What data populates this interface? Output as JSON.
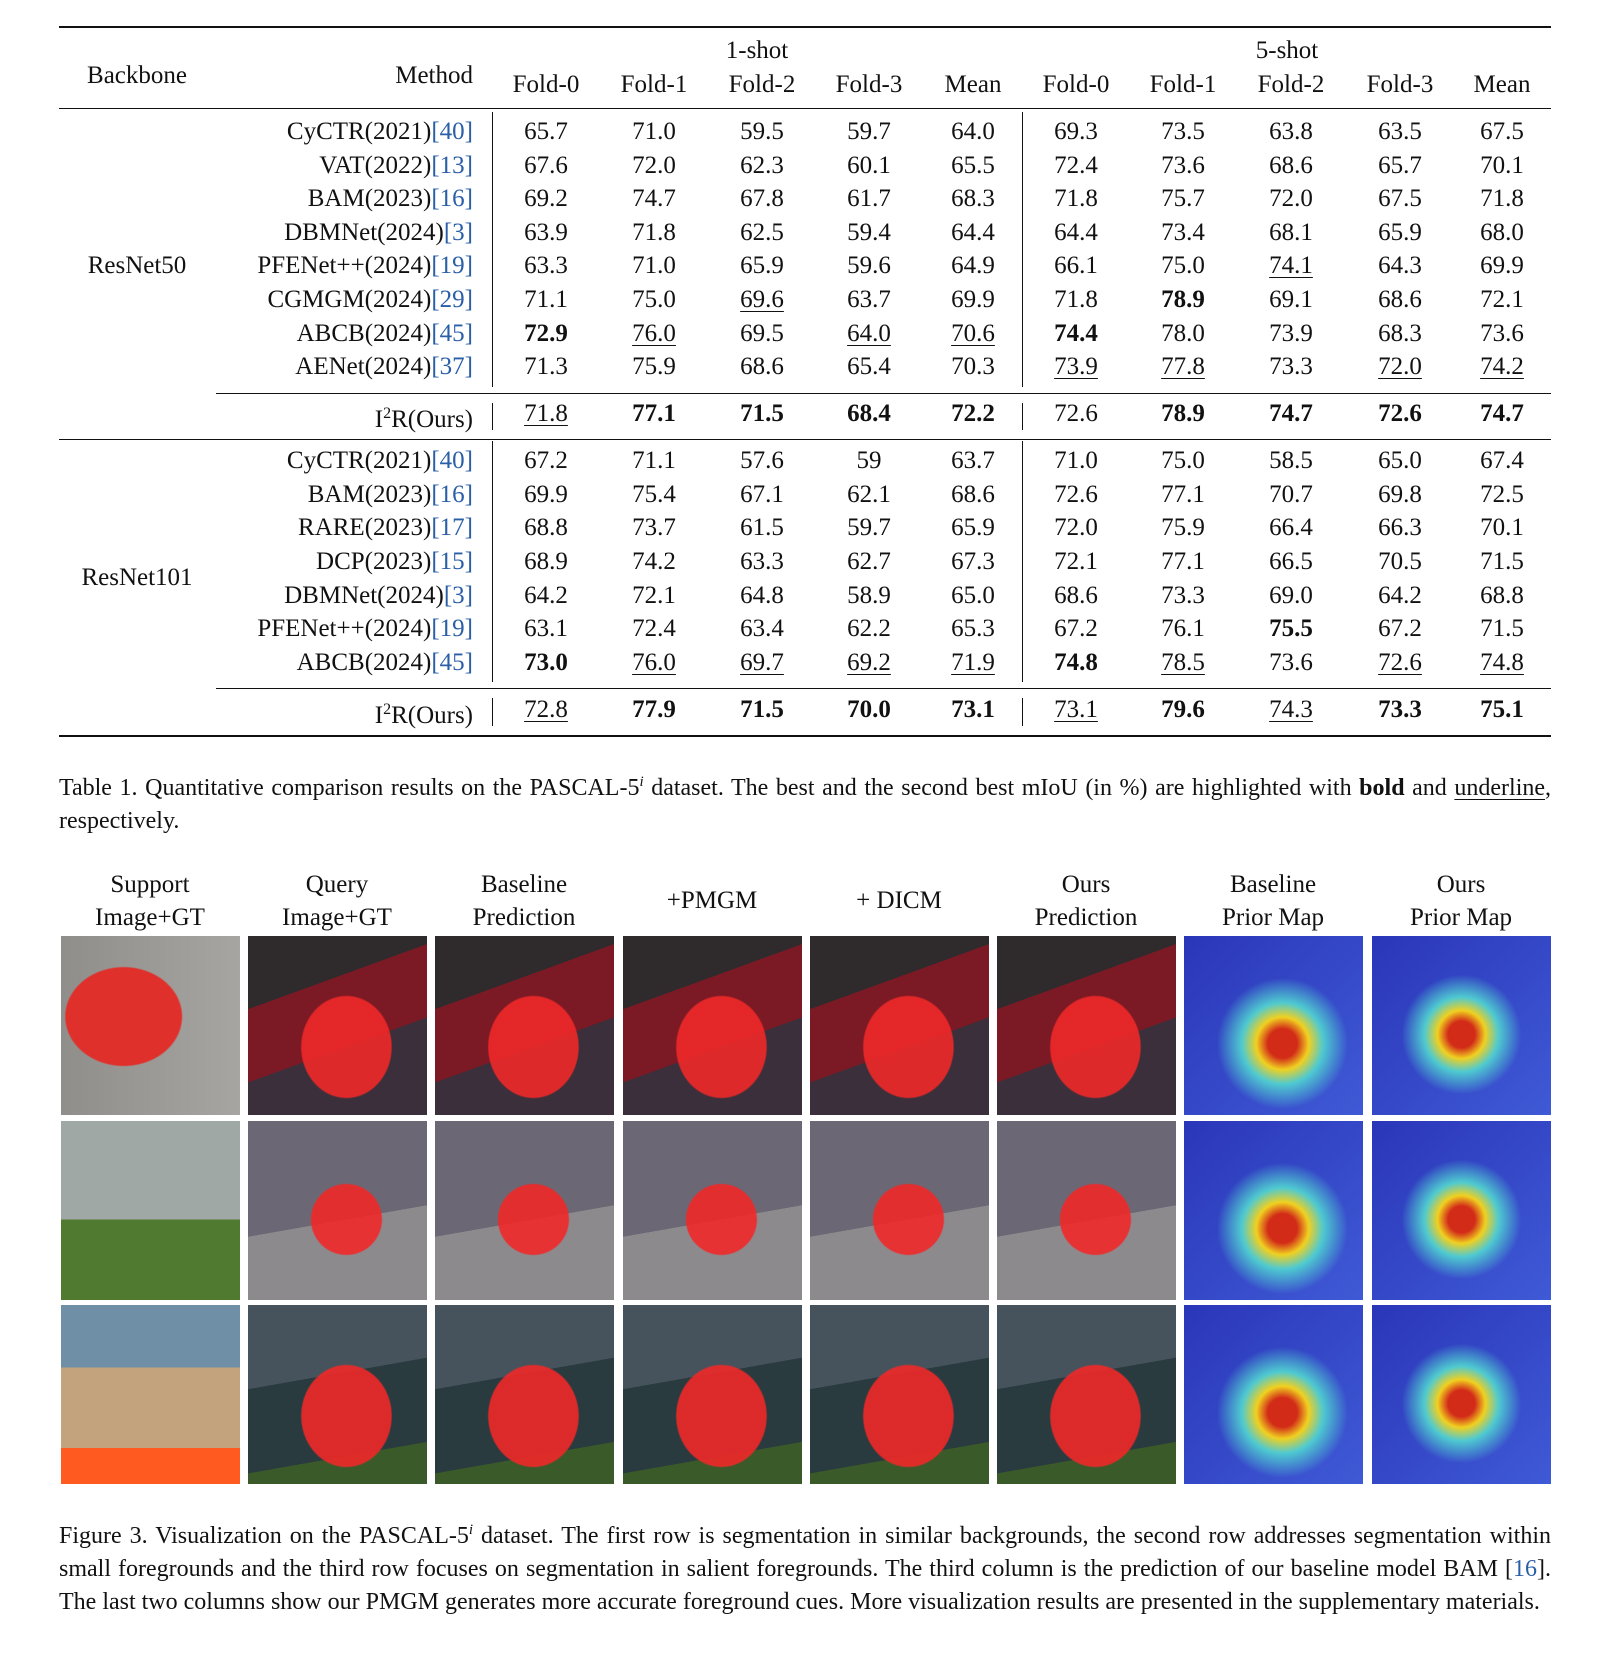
{
  "table": {
    "header": {
      "backbone": "Backbone",
      "method": "Method",
      "groups": [
        "1-shot",
        "5-shot"
      ],
      "folds": [
        "Fold-0",
        "Fold-1",
        "Fold-2",
        "Fold-3",
        "Mean",
        "Fold-0",
        "Fold-1",
        "Fold-2",
        "Fold-3",
        "Mean"
      ]
    },
    "sections": [
      {
        "backbone": "ResNet50",
        "rows": [
          {
            "method": "CyCTR(2021)",
            "cite": "[40]",
            "cells": [
              "65.7",
              "71.0",
              "59.5",
              "59.7",
              "64.0",
              "69.3",
              "73.5",
              "63.8",
              "63.5",
              "67.5"
            ]
          },
          {
            "method": "VAT(2022)",
            "cite": "[13]",
            "cells": [
              "67.6",
              "72.0",
              "62.3",
              "60.1",
              "65.5",
              "72.4",
              "73.6",
              "68.6",
              "65.7",
              "70.1"
            ]
          },
          {
            "method": "BAM(2023)",
            "cite": "[16]",
            "cells": [
              "69.2",
              "74.7",
              "67.8",
              "61.7",
              "68.3",
              "71.8",
              "75.7",
              "72.0",
              "67.5",
              "71.8"
            ]
          },
          {
            "method": "DBMNet(2024)",
            "cite": "[3]",
            "cells": [
              "63.9",
              "71.8",
              "62.5",
              "59.4",
              "64.4",
              "64.4",
              "73.4",
              "68.1",
              "65.9",
              "68.0"
            ]
          },
          {
            "method": "PFENet++(2024)",
            "cite": "[19]",
            "cells": [
              "63.3",
              "71.0",
              "65.9",
              "59.6",
              "64.9",
              "66.1",
              "75.0",
              {
                "text": "74.1",
                "style": "underline"
              },
              "64.3",
              "69.9"
            ]
          },
          {
            "method": "CGMGM(2024)",
            "cite": "[29]",
            "cells": [
              "71.1",
              "75.0",
              {
                "text": "69.6",
                "style": "underline"
              },
              "63.7",
              "69.9",
              "71.8",
              {
                "text": "78.9",
                "style": "bold"
              },
              "69.1",
              "68.6",
              "72.1"
            ]
          },
          {
            "method": "ABCB(2024)",
            "cite": "[45]",
            "cells": [
              {
                "text": "72.9",
                "style": "bold"
              },
              {
                "text": "76.0",
                "style": "underline"
              },
              "69.5",
              {
                "text": "64.0",
                "style": "underline"
              },
              {
                "text": "70.6",
                "style": "underline"
              },
              {
                "text": "74.4",
                "style": "bold"
              },
              "78.0",
              "73.9",
              "68.3",
              "73.6"
            ]
          },
          {
            "method": "AENet(2024)",
            "cite": "[37]",
            "cells": [
              "71.3",
              "75.9",
              "68.6",
              "65.4",
              "70.3",
              {
                "text": "73.9",
                "style": "underline"
              },
              {
                "text": "77.8",
                "style": "underline"
              },
              "73.3",
              {
                "text": "72.0",
                "style": "underline"
              },
              {
                "text": "74.2",
                "style": "underline"
              }
            ]
          }
        ],
        "ours": {
          "base": "I",
          "sup": "2",
          "rest": "R(Ours)",
          "cells": [
            {
              "text": "71.8",
              "style": "underline"
            },
            {
              "text": "77.1",
              "style": "bold"
            },
            {
              "text": "71.5",
              "style": "bold"
            },
            {
              "text": "68.4",
              "style": "bold"
            },
            {
              "text": "72.2",
              "style": "bold"
            },
            "72.6",
            {
              "text": "78.9",
              "style": "bold"
            },
            {
              "text": "74.7",
              "style": "bold"
            },
            {
              "text": "72.6",
              "style": "bold"
            },
            {
              "text": "74.7",
              "style": "bold"
            }
          ]
        }
      },
      {
        "backbone": "ResNet101",
        "rows": [
          {
            "method": "CyCTR(2021)",
            "cite": "[40]",
            "cells": [
              "67.2",
              "71.1",
              "57.6",
              "59",
              "63.7",
              "71.0",
              "75.0",
              "58.5",
              "65.0",
              "67.4"
            ]
          },
          {
            "method": "BAM(2023)",
            "cite": "[16]",
            "cells": [
              "69.9",
              "75.4",
              "67.1",
              "62.1",
              "68.6",
              "72.6",
              "77.1",
              "70.7",
              "69.8",
              "72.5"
            ]
          },
          {
            "method": "RARE(2023)",
            "cite": "[17]",
            "cells": [
              "68.8",
              "73.7",
              "61.5",
              "59.7",
              "65.9",
              "72.0",
              "75.9",
              "66.4",
              "66.3",
              "70.1"
            ]
          },
          {
            "method": "DCP(2023)",
            "cite": "[15]",
            "cells": [
              "68.9",
              "74.2",
              "63.3",
              "62.7",
              "67.3",
              "72.1",
              "77.1",
              "66.5",
              "70.5",
              "71.5"
            ]
          },
          {
            "method": "DBMNet(2024)",
            "cite": "[3]",
            "cells": [
              "64.2",
              "72.1",
              "64.8",
              "58.9",
              "65.0",
              "68.6",
              "73.3",
              "69.0",
              "64.2",
              "68.8"
            ]
          },
          {
            "method": "PFENet++(2024)",
            "cite": "[19]",
            "cells": [
              "63.1",
              "72.4",
              "63.4",
              "62.2",
              "65.3",
              "67.2",
              "76.1",
              {
                "text": "75.5",
                "style": "bold"
              },
              "67.2",
              "71.5"
            ]
          },
          {
            "method": "ABCB(2024)",
            "cite": "[45]",
            "cells": [
              {
                "text": "73.0",
                "style": "bold"
              },
              {
                "text": "76.0",
                "style": "underline"
              },
              {
                "text": "69.7",
                "style": "underline"
              },
              {
                "text": "69.2",
                "style": "underline"
              },
              {
                "text": "71.9",
                "style": "underline"
              },
              {
                "text": "74.8",
                "style": "bold"
              },
              {
                "text": "78.5",
                "style": "underline"
              },
              "73.6",
              {
                "text": "72.6",
                "style": "underline"
              },
              {
                "text": "74.8",
                "style": "underline"
              }
            ]
          }
        ],
        "ours": {
          "base": "I",
          "sup": "2",
          "rest": "R(Ours)",
          "cells": [
            {
              "text": "72.8",
              "style": "underline"
            },
            {
              "text": "77.9",
              "style": "bold"
            },
            {
              "text": "71.5",
              "style": "bold"
            },
            {
              "text": "70.0",
              "style": "bold"
            },
            {
              "text": "73.1",
              "style": "bold"
            },
            {
              "text": "73.1",
              "style": "underline"
            },
            {
              "text": "79.6",
              "style": "bold"
            },
            {
              "text": "74.3",
              "style": "underline"
            },
            {
              "text": "73.3",
              "style": "bold"
            },
            {
              "text": "75.1",
              "style": "bold"
            }
          ]
        }
      }
    ]
  },
  "table_caption": [
    {
      "text": "Table 1. Quantitative comparison results on the PASCAL-5"
    },
    {
      "text": "i",
      "style": "sup"
    },
    {
      "text": " dataset. The best and the second best mIoU (in %) are highlighted with "
    },
    {
      "text": "bold",
      "style": "bold"
    },
    {
      "text": " and "
    },
    {
      "text": "underline",
      "style": "underline"
    },
    {
      "text": ", respectively."
    }
  ],
  "figure": {
    "columns": [
      [
        "Support",
        "Image+GT"
      ],
      [
        "Query",
        "Image+GT"
      ],
      [
        "Baseline",
        "Prediction"
      ],
      [
        "+PMGM"
      ],
      [
        "+ DICM"
      ],
      [
        "Ours",
        "Prediction"
      ],
      [
        "Baseline",
        "Prior Map"
      ],
      [
        "Ours",
        "Prior Map"
      ]
    ],
    "caption": [
      {
        "text": "Figure 3.  Visualization on the PASCAL-5"
      },
      {
        "text": "i",
        "style": "sup"
      },
      {
        "text": " dataset.  The first row is segmentation in similar backgrounds, the second row addresses segmentation within small foregrounds and the third row focuses on segmentation in salient foregrounds. The third column is the prediction of our baseline model BAM ["
      },
      {
        "text": "16",
        "style": "cite"
      },
      {
        "text": "]. The last two columns show our PMGM generates more accurate foreground cues. More visualization results are presented in the supplementary materials."
      }
    ]
  }
}
